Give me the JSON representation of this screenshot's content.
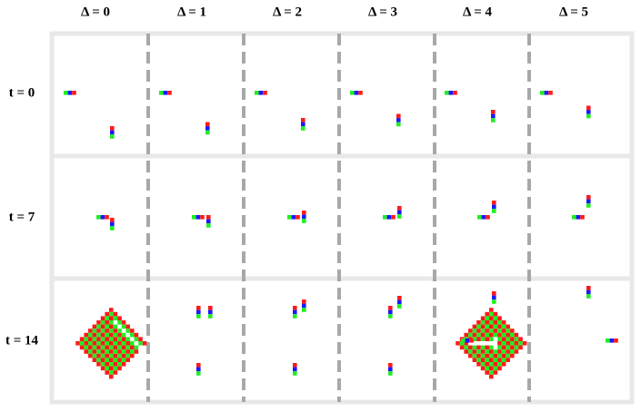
{
  "columns": [
    "Δ = 0",
    "Δ = 1",
    "Δ = 2",
    "Δ = 3",
    "Δ = 4",
    "Δ = 5"
  ],
  "rows": [
    "t = 0",
    "t = 7",
    "t = 14"
  ]
}
